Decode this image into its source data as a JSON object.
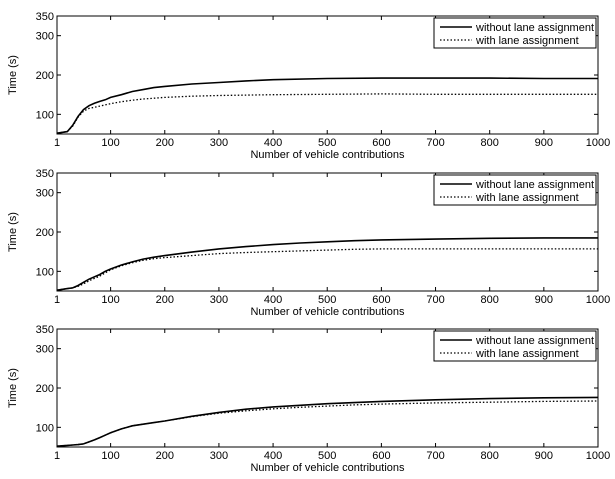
{
  "chart_data": [
    {
      "type": "line",
      "xlabel": "Number of vehicle contributions",
      "ylabel": "Time (s)",
      "xlim": [
        1,
        1000
      ],
      "ylim": [
        50,
        350
      ],
      "xticks": [
        1,
        100,
        200,
        300,
        400,
        500,
        600,
        700,
        800,
        900,
        1000
      ],
      "yticks": [
        100,
        200,
        300,
        350
      ],
      "legend": "top-right",
      "grid": false,
      "series": [
        {
          "name": "without lane assignment",
          "style": "solid",
          "x": [
            1,
            10,
            20,
            30,
            40,
            50,
            60,
            70,
            80,
            90,
            100,
            120,
            140,
            160,
            180,
            200,
            250,
            300,
            350,
            400,
            500,
            600,
            700,
            800,
            900,
            1000
          ],
          "y": [
            52,
            54,
            56,
            72,
            95,
            112,
            122,
            128,
            133,
            137,
            143,
            150,
            158,
            163,
            168,
            171,
            177,
            181,
            185,
            188,
            191,
            192,
            192,
            192,
            191,
            191
          ]
        },
        {
          "name": "with lane assignment",
          "style": "dotted",
          "x": [
            1,
            10,
            20,
            30,
            40,
            50,
            60,
            70,
            80,
            90,
            100,
            120,
            140,
            160,
            180,
            200,
            250,
            300,
            350,
            400,
            500,
            600,
            700,
            800,
            900,
            1000
          ],
          "y": [
            52,
            54,
            56,
            70,
            93,
            108,
            115,
            118,
            121,
            124,
            127,
            132,
            136,
            139,
            141,
            143,
            146,
            148,
            149,
            150,
            151,
            152,
            151,
            151,
            151,
            151
          ]
        }
      ]
    },
    {
      "type": "line",
      "xlabel": "Number of vehicle contributions",
      "ylabel": "Time (s)",
      "xlim": [
        1,
        1000
      ],
      "ylim": [
        50,
        350
      ],
      "xticks": [
        1,
        100,
        200,
        300,
        400,
        500,
        600,
        700,
        800,
        900,
        1000
      ],
      "yticks": [
        100,
        200,
        300,
        350
      ],
      "legend": "top-right",
      "grid": false,
      "series": [
        {
          "name": "without lane assignment",
          "style": "solid",
          "x": [
            1,
            10,
            20,
            30,
            40,
            50,
            60,
            70,
            80,
            90,
            100,
            120,
            140,
            160,
            180,
            200,
            250,
            300,
            350,
            400,
            450,
            500,
            550,
            600,
            700,
            800,
            900,
            1000
          ],
          "y": [
            52,
            54,
            56,
            58,
            64,
            72,
            80,
            86,
            92,
            100,
            106,
            116,
            124,
            131,
            136,
            140,
            149,
            157,
            163,
            168,
            172,
            175,
            178,
            180,
            182,
            184,
            185,
            185
          ]
        },
        {
          "name": "with lane assignment",
          "style": "dotted",
          "x": [
            1,
            10,
            20,
            30,
            40,
            50,
            60,
            70,
            80,
            90,
            100,
            120,
            140,
            160,
            180,
            200,
            250,
            300,
            350,
            400,
            450,
            500,
            550,
            600,
            700,
            800,
            900,
            1000
          ],
          "y": [
            52,
            54,
            56,
            58,
            62,
            68,
            76,
            82,
            88,
            96,
            104,
            114,
            122,
            128,
            132,
            135,
            140,
            145,
            148,
            150,
            152,
            154,
            156,
            157,
            157,
            157,
            157,
            157
          ]
        }
      ]
    },
    {
      "type": "line",
      "xlabel": "Number of vehicle contributions",
      "ylabel": "Time (s)",
      "xlim": [
        1,
        1000
      ],
      "ylim": [
        50,
        350
      ],
      "xticks": [
        1,
        100,
        200,
        300,
        400,
        500,
        600,
        700,
        800,
        900,
        1000
      ],
      "yticks": [
        100,
        200,
        300,
        350
      ],
      "legend": "top-right",
      "grid": false,
      "series": [
        {
          "name": "without lane assignment",
          "style": "solid",
          "x": [
            1,
            10,
            20,
            30,
            40,
            50,
            60,
            70,
            80,
            90,
            100,
            120,
            140,
            160,
            180,
            200,
            250,
            300,
            350,
            400,
            450,
            500,
            550,
            600,
            700,
            800,
            900,
            1000
          ],
          "y": [
            52,
            53,
            54,
            55,
            56,
            58,
            63,
            68,
            74,
            80,
            86,
            96,
            104,
            108,
            112,
            116,
            128,
            138,
            146,
            152,
            156,
            160,
            163,
            166,
            170,
            173,
            175,
            176
          ]
        },
        {
          "name": "with lane assignment",
          "style": "dotted",
          "x": [
            1,
            10,
            20,
            30,
            40,
            50,
            60,
            70,
            80,
            90,
            100,
            120,
            140,
            160,
            180,
            200,
            250,
            300,
            350,
            400,
            450,
            500,
            550,
            600,
            700,
            800,
            900,
            1000
          ],
          "y": [
            52,
            53,
            54,
            55,
            56,
            58,
            63,
            68,
            74,
            80,
            86,
            96,
            104,
            108,
            112,
            116,
            127,
            136,
            142,
            147,
            151,
            154,
            157,
            159,
            162,
            164,
            166,
            167
          ]
        }
      ]
    }
  ]
}
